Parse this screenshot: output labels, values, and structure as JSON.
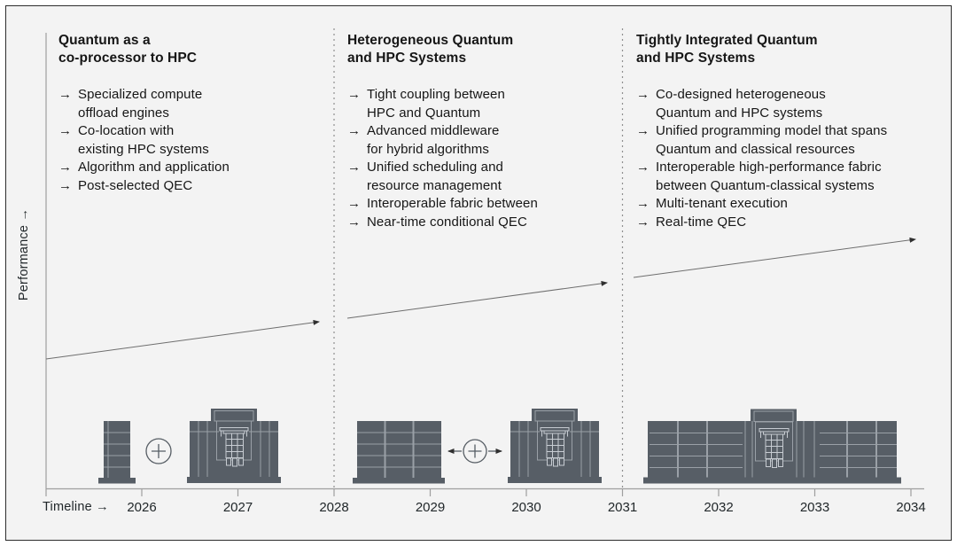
{
  "colors": {
    "panel_bg": "#f3f3f3",
    "border": "#2d2d2d",
    "text": "#161616",
    "building": "#575e66",
    "building_detail": "#9aa0a7",
    "building_detail_light": "#c7ccd2"
  },
  "axes": {
    "performance_label": "Performance →",
    "timeline_label": "Timeline →",
    "years": [
      "2026",
      "2027",
      "2028",
      "2029",
      "2030",
      "2031",
      "2032",
      "2033",
      "2034"
    ]
  },
  "bullet_glyph": "→",
  "phases": [
    {
      "title": "Quantum as a\nco-processor to HPC",
      "items": [
        "Specialized compute\noffload engines",
        "Co-location with\nexisting HPC systems",
        "Algorithm and application",
        "Post-selected QEC"
      ]
    },
    {
      "title": "Heterogeneous Quantum\nand HPC Systems",
      "items": [
        "Tight coupling between\nHPC and Quantum",
        "Advanced middleware\nfor hybrid algorithms",
        "Unified scheduling and\nresource management",
        "Interoperable fabric between",
        "Near-time conditional QEC"
      ]
    },
    {
      "title": "Tightly Integrated Quantum\nand HPC Systems",
      "items": [
        "Co-designed heterogeneous\nQuantum and HPC systems",
        "Unified programming model that spans\nQuantum and classical resources",
        "Interoperable high-performance fabric\nbetween Quantum-classical systems",
        "Multi-tenant execution",
        "Real-time QEC"
      ]
    }
  ]
}
